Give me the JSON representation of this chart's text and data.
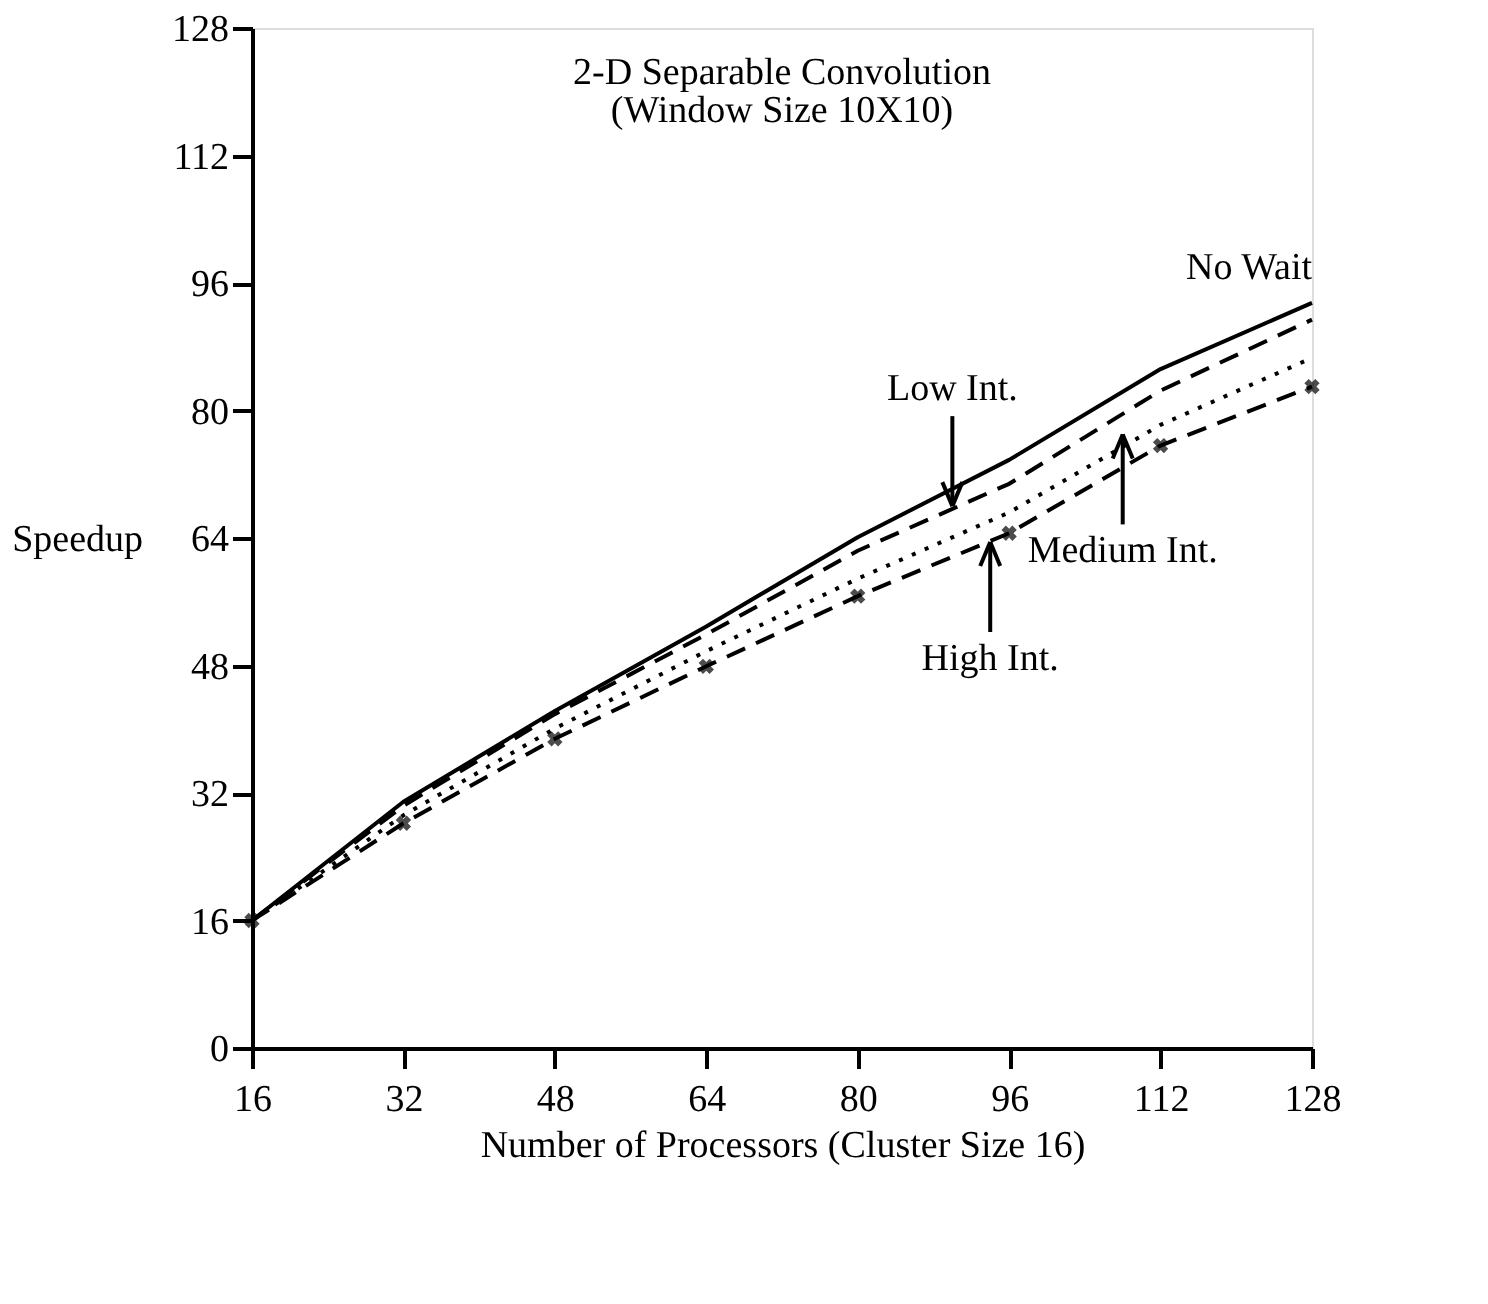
{
  "chart_data": {
    "type": "line",
    "title": "2-D Separable Convolution",
    "subtitle": "(Window Size 10X10)",
    "xlabel": "Number of Processors (Cluster Size 16)",
    "ylabel": "Speedup",
    "x": [
      16,
      32,
      48,
      64,
      80,
      96,
      112,
      128
    ],
    "series": [
      {
        "color": "#000000",
        "line_style": "solid",
        "marker": "none",
        "values": [
          16,
          30.9,
          42.3,
          52.9,
          64.1,
          73.8,
          85.2,
          93.5
        ]
      },
      {
        "color": "#000000",
        "line_style": "dashed",
        "marker": "none",
        "values": [
          16,
          30.4,
          41.9,
          51.9,
          62.4,
          70.8,
          82.5,
          91.4
        ]
      },
      {
        "color": "#000000",
        "line_style": "dotted",
        "marker": "none",
        "values": [
          16,
          29.2,
          40.1,
          49.8,
          58.9,
          67.2,
          78.2,
          86.6
        ]
      },
      {
        "color": "#000000",
        "line_style": "dashed",
        "marker": "cross",
        "values": [
          16,
          28.2,
          38.8,
          47.9,
          56.7,
          64.6,
          75.6,
          83.0
        ]
      }
    ],
    "annotations": [
      {
        "text": "No Wait",
        "x": 128,
        "y": 93.5
      },
      {
        "text": "Low Int.",
        "x": 90,
        "y": 68
      },
      {
        "text": "Medium Int.",
        "x": 108,
        "y": 77
      },
      {
        "text": "High Int.",
        "x": 94,
        "y": 63.5
      }
    ],
    "xlim": [
      16,
      128
    ],
    "ylim": [
      0,
      128
    ],
    "xticks": [
      16,
      32,
      48,
      64,
      80,
      96,
      112,
      128
    ],
    "yticks": [
      0,
      16,
      32,
      48,
      64,
      80,
      96,
      112,
      128
    ],
    "grid": false
  }
}
